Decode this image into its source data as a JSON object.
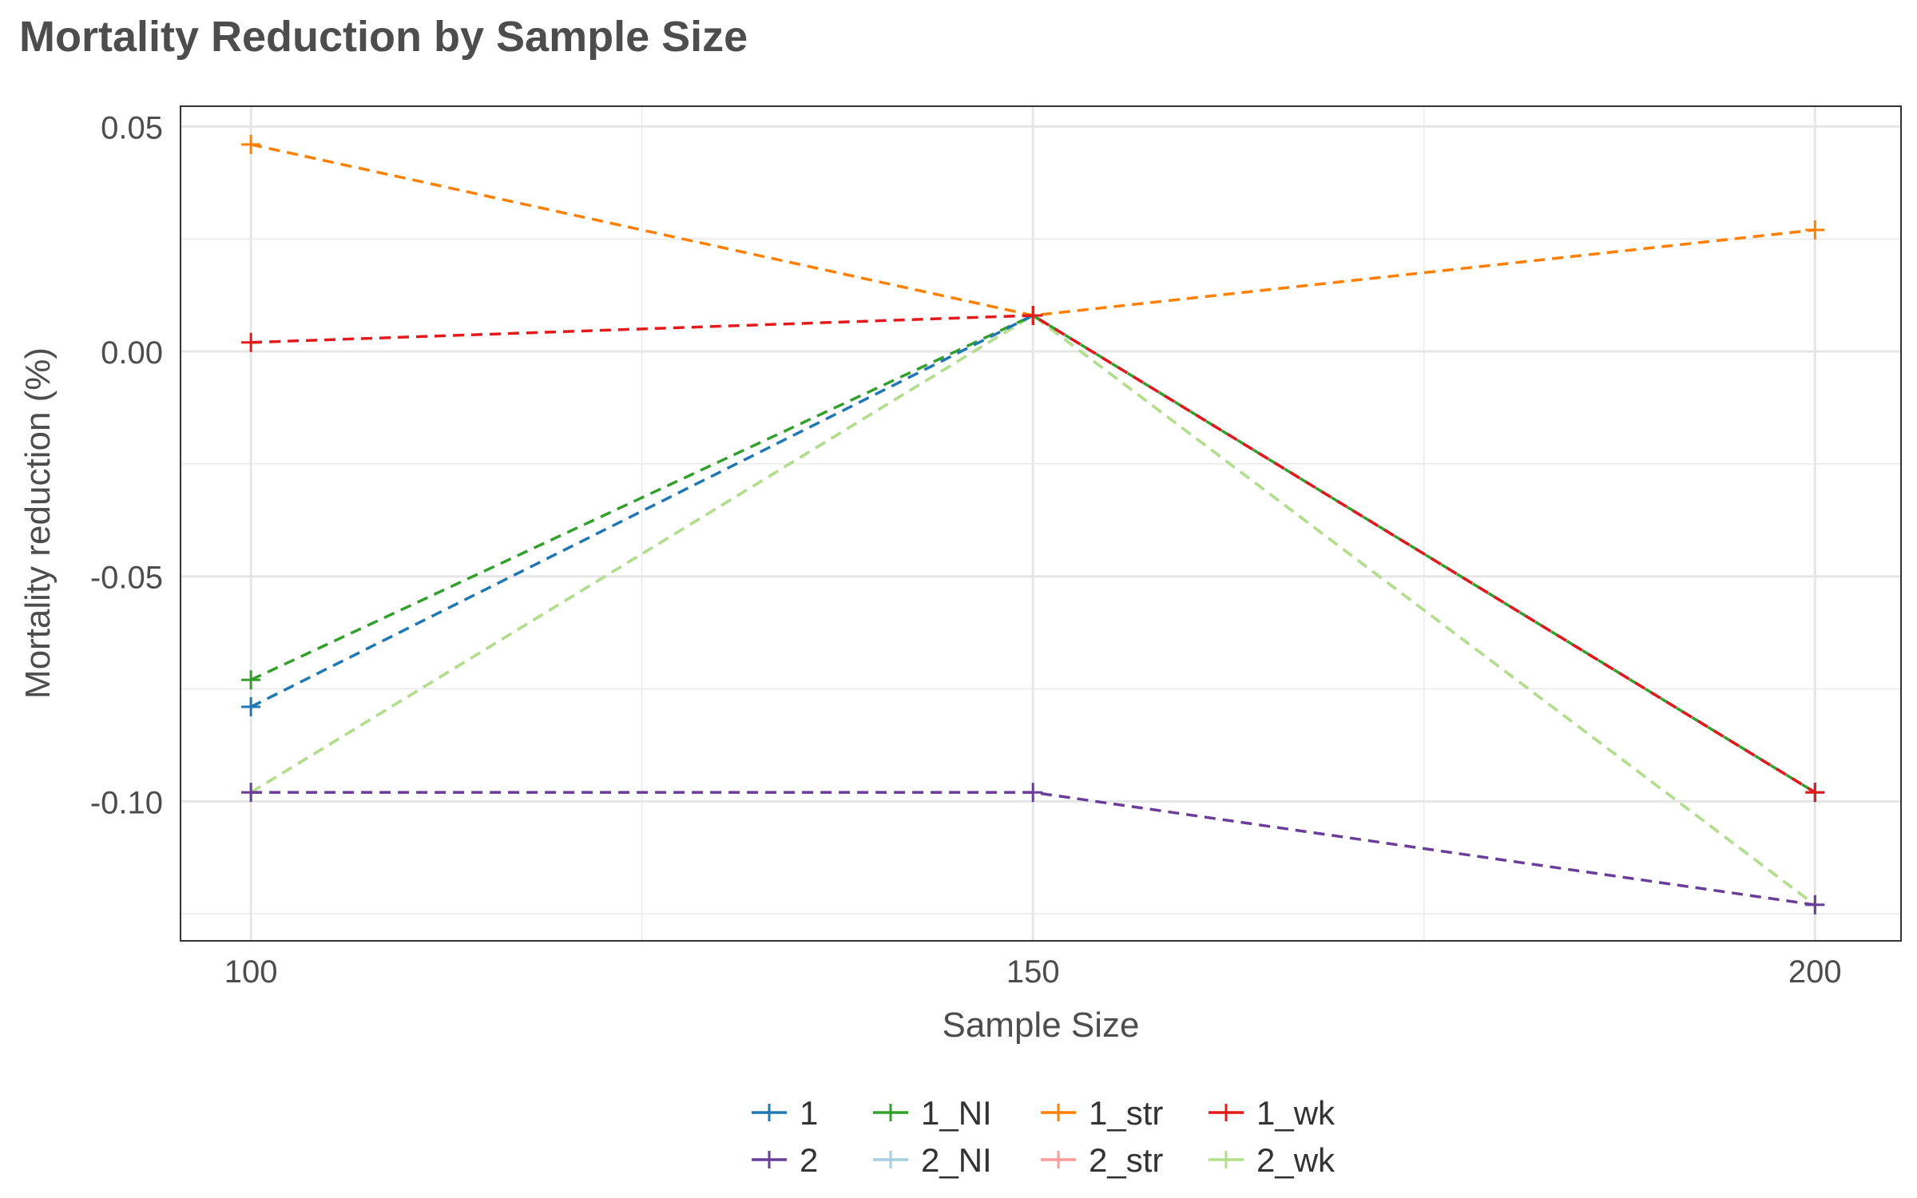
{
  "chart_data": {
    "type": "line",
    "title": "Mortality Reduction by Sample Size",
    "xlabel": "Sample Size",
    "ylabel": "Mortality reduction (%)",
    "x": [
      100,
      150,
      200
    ],
    "xlim": [
      95.5,
      205.5
    ],
    "ylim": [
      -0.131,
      0.0545
    ],
    "xticks": [
      100,
      150,
      200
    ],
    "xtick_labels": [
      "100",
      "150",
      "200"
    ],
    "yticks": [
      -0.1,
      -0.05,
      0.0,
      0.05
    ],
    "ytick_labels": [
      "-0.10",
      "-0.05",
      "0.00",
      "0.05"
    ],
    "grid": true,
    "line_style": "dashed",
    "marker": "plus",
    "legend_position": "bottom",
    "series": [
      {
        "name": "1",
        "color": "#1f78b4",
        "values": [
          -0.079,
          0.008,
          -0.098
        ]
      },
      {
        "name": "2",
        "color": "#6a3d9a",
        "values": [
          -0.098,
          -0.098,
          -0.123
        ]
      },
      {
        "name": "1_NI",
        "color": "#33a02c",
        "values": [
          -0.073,
          0.008,
          -0.098
        ]
      },
      {
        "name": "2_NI",
        "color": "#a6cee3",
        "values": [
          -0.098,
          0.008,
          -0.123
        ]
      },
      {
        "name": "1_str",
        "color": "#ff7f00",
        "values": [
          0.046,
          0.008,
          0.027
        ]
      },
      {
        "name": "2_str",
        "color": "#fb9a99",
        "values": [
          -0.098,
          0.008,
          -0.123
        ]
      },
      {
        "name": "1_wk",
        "color": "#e31a1c",
        "values": [
          0.002,
          0.008,
          -0.098
        ]
      },
      {
        "name": "2_wk",
        "color": "#b2df8a",
        "values": [
          -0.098,
          0.008,
          -0.123
        ]
      }
    ],
    "legend_order": [
      "1",
      "1_NI",
      "1_str",
      "1_wk",
      "2",
      "2_NI",
      "2_str",
      "2_wk"
    ],
    "draw_order": [
      "2_str",
      "2_NI",
      "2_wk",
      "2",
      "1_NI",
      "1",
      "1_str",
      "1_wk"
    ]
  }
}
